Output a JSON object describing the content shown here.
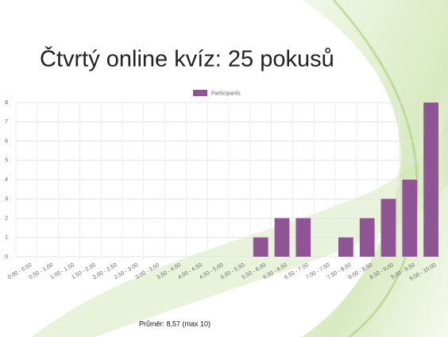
{
  "chart_data": {
    "type": "bar",
    "title": "Čtvrtý online kvíz: 25 pokusů",
    "categories": [
      "0.00 - 0.50",
      "0.50 - 1.00",
      "1.00 - 1.50",
      "1.50 - 2.00",
      "2.00 - 2.50",
      "2.50 - 3.00",
      "3.00 - 3.50",
      "3.50 - 4.00",
      "4.00 - 4.50",
      "4.50 - 5.00",
      "5.00 - 5.50",
      "5.50 - 6.00",
      "6.00 - 6.50",
      "6.50 - 7.00",
      "7.00 - 7.50",
      "7.50 - 8.00",
      "8.00 - 8.50",
      "8.50 - 9.00",
      "9.00 - 9.50",
      "9.50 - 10.00"
    ],
    "series": [
      {
        "name": "Participants",
        "color": "#8e5494",
        "values": [
          0,
          0,
          0,
          0,
          0,
          0,
          0,
          0,
          0,
          0,
          0,
          1,
          2,
          2,
          0,
          1,
          2,
          3,
          4,
          8
        ]
      }
    ],
    "ylim": [
      0,
      8
    ],
    "yticks": [
      0,
      1,
      2,
      3,
      4,
      5,
      6,
      7,
      8
    ],
    "grid": true,
    "legend": "top",
    "caption": "Průměr: 8,57 (max 10)"
  }
}
